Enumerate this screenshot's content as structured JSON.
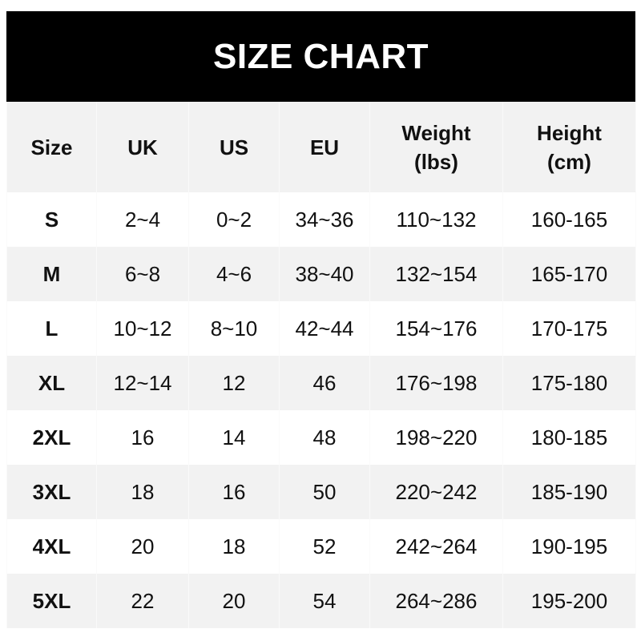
{
  "title": "SIZE CHART",
  "headers": [
    "Size",
    "UK",
    "US",
    "EU",
    "Weight\n(lbs)",
    "Height\n(cm)"
  ],
  "header_lines": [
    [
      "Size"
    ],
    [
      "UK"
    ],
    [
      "US"
    ],
    [
      "EU"
    ],
    [
      "Weight",
      "(lbs)"
    ],
    [
      "Height",
      "(cm)"
    ]
  ],
  "rows": [
    [
      "S",
      "2~4",
      "0~2",
      "34~36",
      "110~132",
      "160-165"
    ],
    [
      "M",
      "6~8",
      "4~6",
      "38~40",
      "132~154",
      "165-170"
    ],
    [
      "L",
      "10~12",
      "8~10",
      "42~44",
      "154~176",
      "170-175"
    ],
    [
      "XL",
      "12~14",
      "12",
      "46",
      "176~198",
      "175-180"
    ],
    [
      "2XL",
      "16",
      "14",
      "48",
      "198~220",
      "180-185"
    ],
    [
      "3XL",
      "18",
      "16",
      "50",
      "220~242",
      "185-190"
    ],
    [
      "4XL",
      "20",
      "18",
      "52",
      "242~264",
      "190-195"
    ],
    [
      "5XL",
      "22",
      "20",
      "54",
      "264~286",
      "195-200"
    ]
  ],
  "colors": {
    "title_bg": "#000000",
    "title_text": "#ffffff",
    "stripe": "#f2f2f2"
  }
}
